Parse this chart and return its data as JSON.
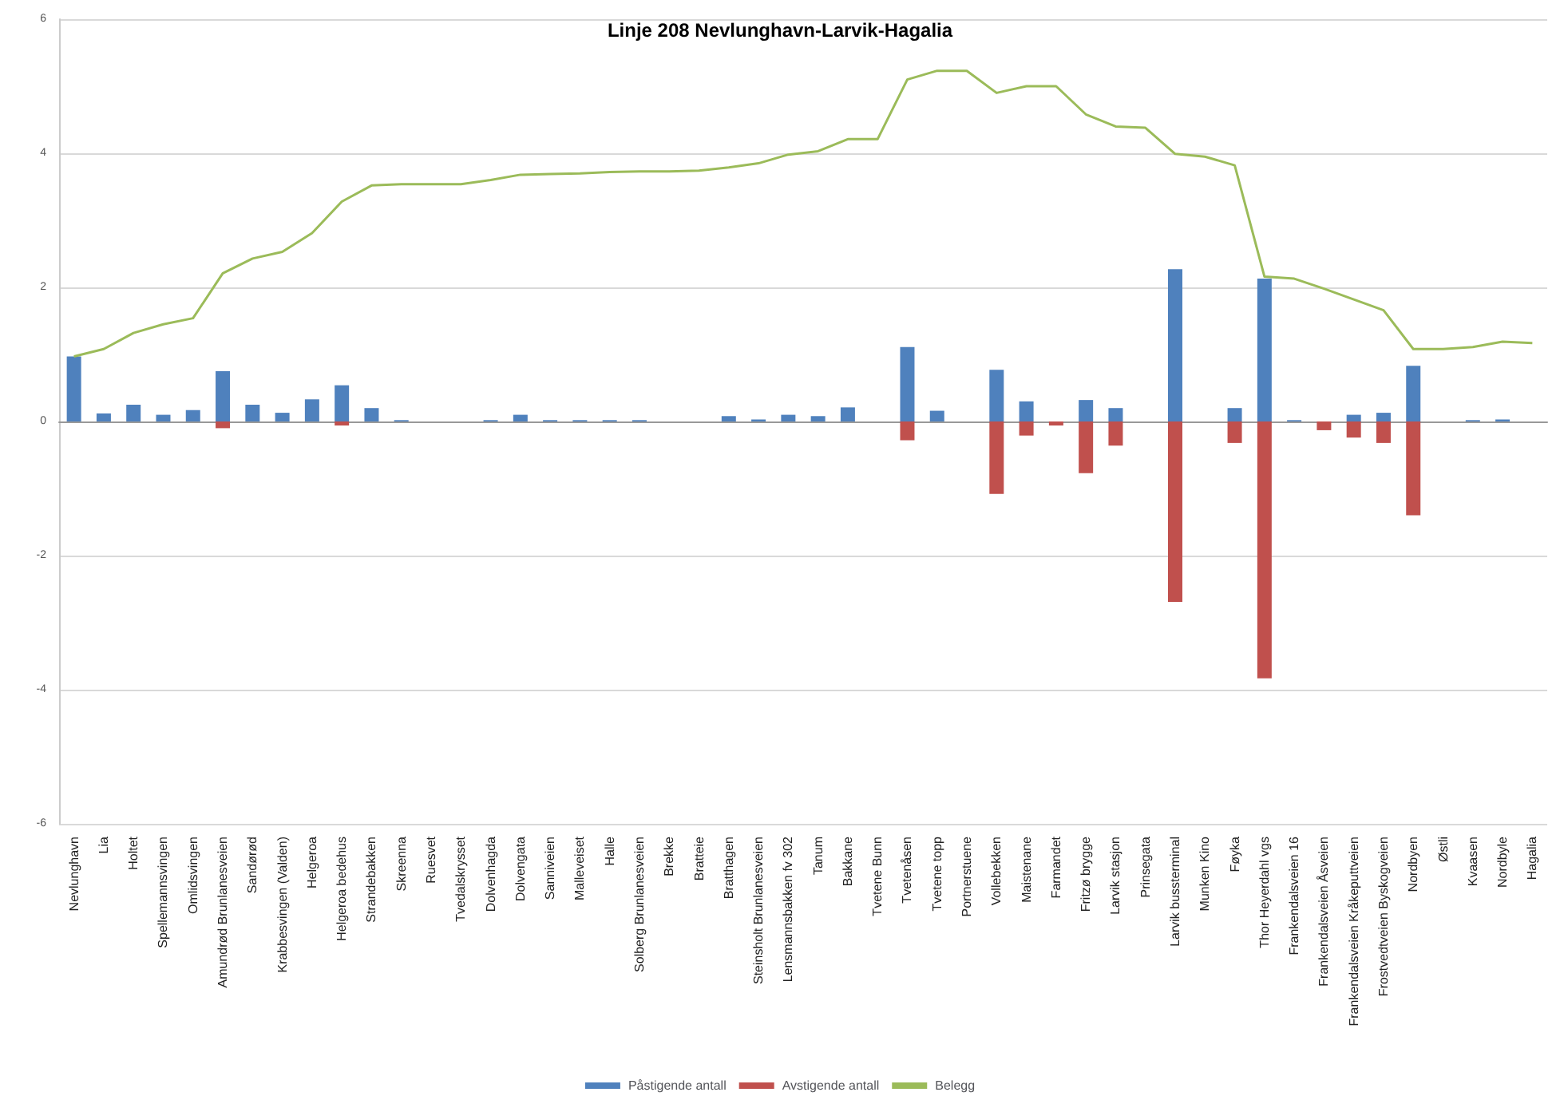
{
  "chart_data": {
    "type": "bar",
    "title": "Linje 208 Nevlunghavn-Larvik-Hagalia",
    "categories": [
      "Nevlunghavn",
      "Lia",
      "Holtet",
      "Spellemannsvingen",
      "Omlidsvingen",
      "Amundrød Brunlanesveien",
      "Sandørød",
      "Krabbesvingen (Valden)",
      "Helgeroa",
      "Helgeroa bedehus",
      "Strandebakken",
      "Skreenna",
      "Ruesvet",
      "Tvedalskrysset",
      "Dolvenhagda",
      "Dolvengata",
      "Sanniveien",
      "Malleveiset",
      "Halle",
      "Solberg Brunlanesveien",
      "Brekke",
      "Bratteie",
      "Bratthagen",
      "Steinsholt Brunlanesveien",
      "Lensmannsbakken fv 302",
      "Tanum",
      "Bakkane",
      "Tvetene Bunn",
      "Tvetenåsen",
      "Tvetene topp",
      "Portnerstuene",
      "Vollebekken",
      "Maistenane",
      "Farmandet",
      "Fritzø brygge",
      "Larvik stasjon",
      "Prinsegata",
      "Larvik bussterminal",
      "Munken Kino",
      "Føyka",
      "Thor Heyerdahl vgs",
      "Frankendalsveien 16",
      "Frankendalsveien Åsveien",
      "Frankendalsveien Kråkeputtveien",
      "Frostvedtveien Byskogveien",
      "Nordbyen",
      "Østli",
      "Kvaasen",
      "Nordbyle",
      "Hagalia"
    ],
    "stacked": true,
    "series": [
      {
        "name": "Påstigende antall",
        "color": "#4f81bd",
        "values": [
          0.97,
          0.12,
          0.25,
          0.1,
          0.17,
          0.75,
          0.25,
          0.13,
          0.33,
          0.54,
          0.2,
          0.02,
          0,
          0,
          0.02,
          0.1,
          0.02,
          0.02,
          0.02,
          0.02,
          0,
          0,
          0.08,
          0.03,
          0.1,
          0.08,
          0.21,
          0,
          1.11,
          0.16,
          0,
          0.77,
          0.3,
          0,
          0.32,
          0.2,
          0,
          2.27,
          0,
          0.2,
          2.13,
          0.02,
          0,
          0.1,
          0.13,
          0.83,
          0,
          0.02,
          0.03,
          0
        ]
      },
      {
        "name": "Avstigende antall",
        "color": "#c0504d",
        "values": [
          0,
          0,
          0,
          0,
          0,
          -0.1,
          0,
          0,
          0,
          -0.06,
          0,
          0,
          0,
          0,
          0,
          0,
          0,
          0,
          0,
          0,
          0,
          0,
          0,
          0,
          0,
          0,
          0,
          0,
          -0.28,
          0,
          0,
          -1.08,
          -0.21,
          -0.06,
          -0.77,
          -0.36,
          0,
          -2.69,
          0,
          -0.32,
          -3.83,
          0,
          -0.13,
          -0.24,
          -0.32,
          -1.4,
          0,
          0,
          0,
          0
        ]
      },
      {
        "name": "Belegg",
        "type": "line",
        "color": "#9bbb59",
        "values": [
          0.97,
          1.08,
          1.32,
          1.45,
          1.54,
          2.21,
          2.43,
          2.53,
          2.81,
          3.28,
          3.52,
          3.54,
          3.54,
          3.54,
          3.6,
          3.68,
          3.69,
          3.7,
          3.72,
          3.73,
          3.73,
          3.74,
          3.79,
          3.85,
          3.98,
          4.03,
          4.21,
          4.21,
          5.1,
          5.23,
          5.23,
          4.9,
          5.0,
          5.0,
          4.58,
          4.4,
          4.38,
          3.99,
          3.95,
          3.82,
          2.16,
          2.13,
          1.98,
          1.82,
          1.66,
          1.08,
          1.08,
          1.11,
          1.19,
          1.17
        ]
      }
    ],
    "ylim": [
      -6,
      6
    ],
    "yticks": [
      -6,
      -4,
      -2,
      0,
      2,
      4,
      6
    ],
    "grid": "y",
    "legend": "bottom",
    "marker": "none"
  }
}
